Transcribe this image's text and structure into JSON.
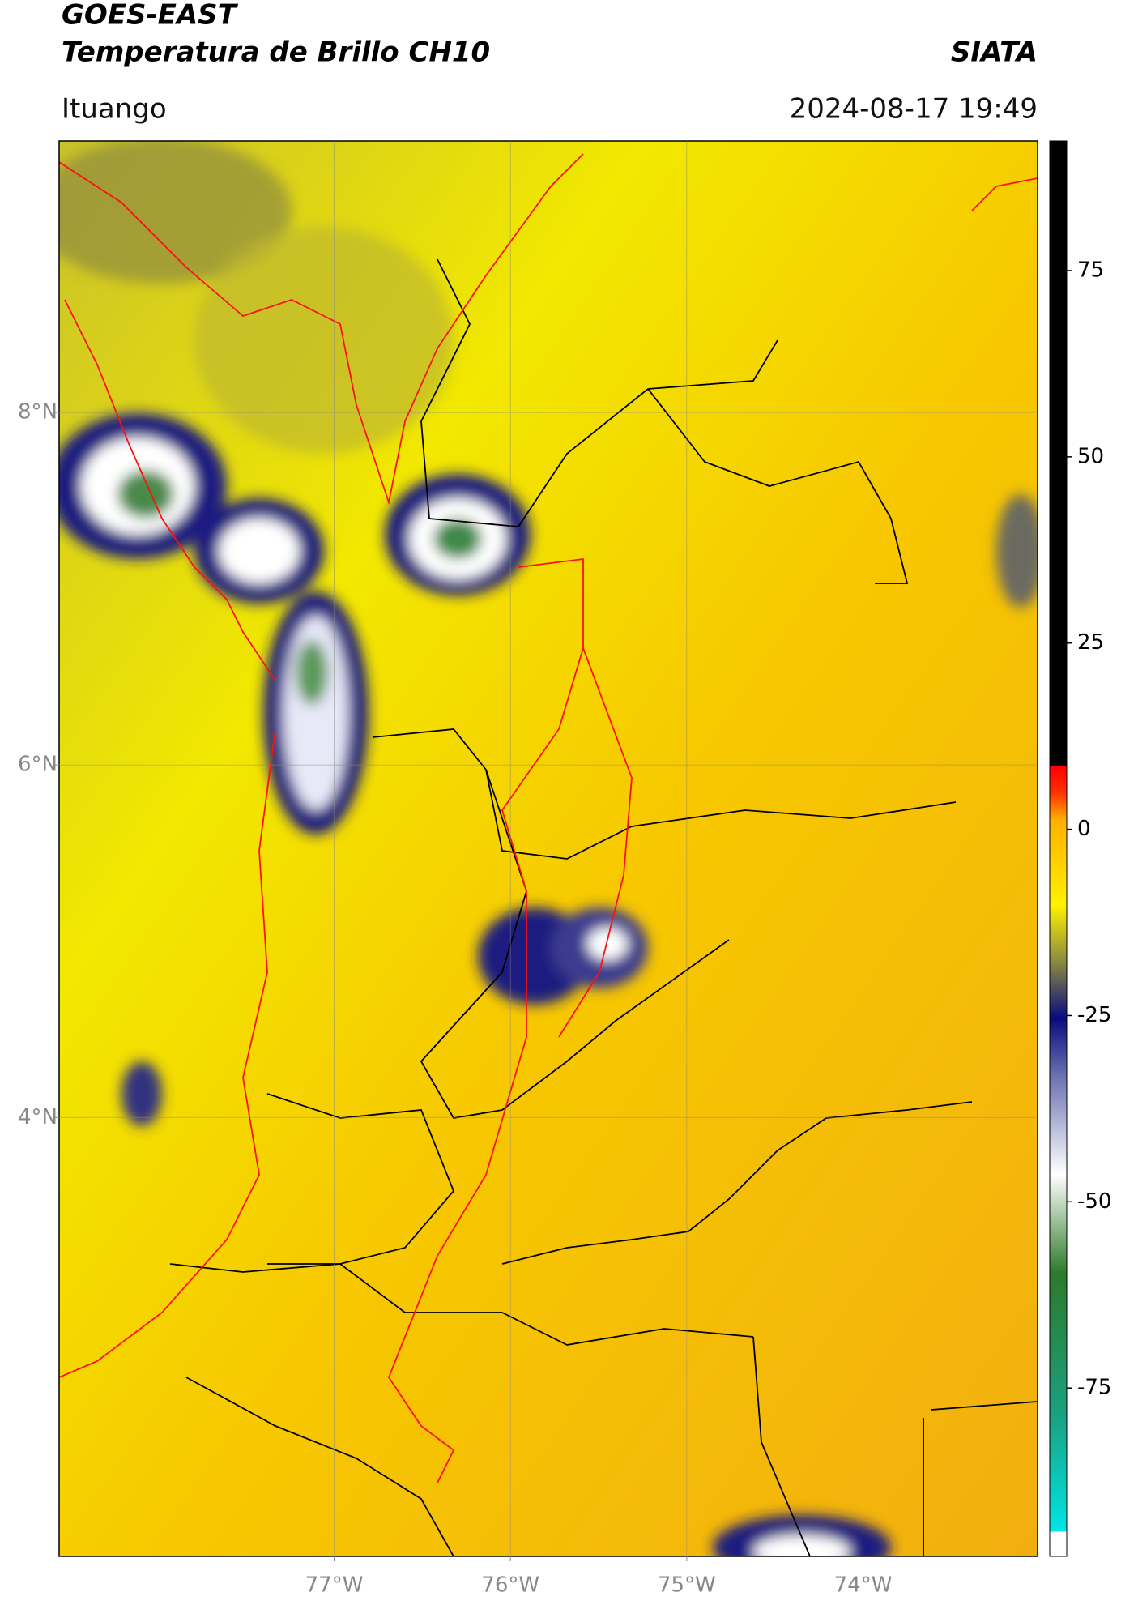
{
  "header": {
    "title": "GOES-EAST",
    "subtitle": "Temperatura de Brillo CH10",
    "source": "SIATA",
    "location": "Ituango",
    "datetime": "2024-08-17 19:49"
  },
  "map": {
    "lonlim": [
      -78.56,
      -73.01
    ],
    "latlim": [
      1.51,
      9.54
    ],
    "grid": true,
    "lat_ticks": [
      {
        "value": 8,
        "label": "8°N"
      },
      {
        "value": 6,
        "label": "6°N"
      },
      {
        "value": 4,
        "label": "4°N"
      }
    ],
    "lon_ticks": [
      {
        "value": -77,
        "label": "77°W"
      },
      {
        "value": -76,
        "label": "76°W"
      },
      {
        "value": -75,
        "label": "75°W"
      },
      {
        "value": -74,
        "label": "74°W"
      }
    ]
  },
  "colorbar": {
    "lim": [
      -97.6,
      92.4
    ],
    "ticks": [
      75,
      50,
      25,
      0,
      -25,
      -50,
      -75
    ]
  }
}
